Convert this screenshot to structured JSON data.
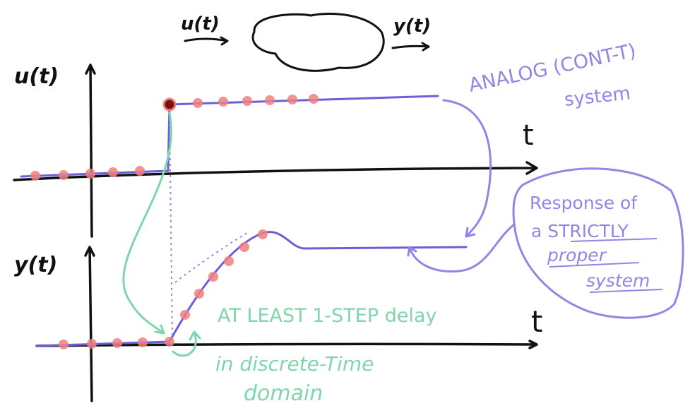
{
  "block_diagram": {
    "input_label": "u(t)",
    "output_label": "y(t)"
  },
  "input_plot": {
    "y_axis_label": "u(t)",
    "x_axis_label": "t"
  },
  "output_plot": {
    "y_axis_label": "y(t)",
    "x_axis_label": "t"
  },
  "annotations": {
    "system_type_line1": "ANALOG (CONT-T)",
    "system_type_line2": "system",
    "response_line1": "Response of",
    "response_line2": "a STRICTLY",
    "response_line3": "proper",
    "response_line4": "system",
    "delay_line1": "AT LEAST 1-STEP delay",
    "delay_line2": "in discrete-Time",
    "delay_line3": "domain"
  },
  "colors": {
    "ink": "#111111",
    "annotation_purple": "#8f86e6",
    "annotation_green": "#7fd6ad",
    "sample_dots": "#f08080",
    "signal_line": "#6a5fd8"
  }
}
